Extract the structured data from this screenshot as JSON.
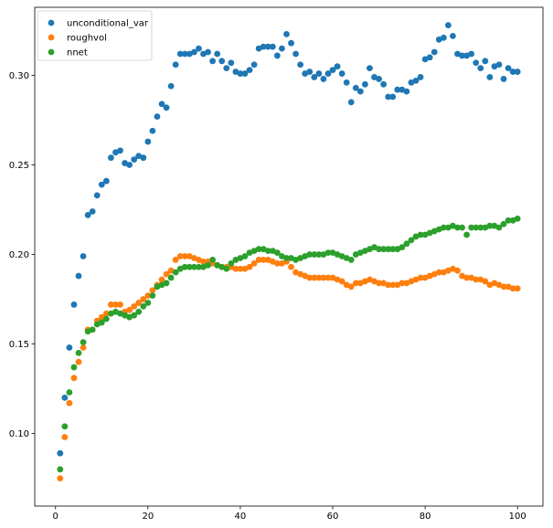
{
  "chart_data": {
    "type": "scatter",
    "title": "",
    "xlabel": "",
    "ylabel": "",
    "xlim": [
      -4.5,
      105.5
    ],
    "ylim": [
      0.0595,
      0.338
    ],
    "xticks": [
      0,
      20,
      40,
      60,
      80,
      100
    ],
    "xtick_labels": [
      "0",
      "20",
      "40",
      "60",
      "80",
      "100"
    ],
    "yticks": [
      0.1,
      0.15,
      0.2,
      0.25,
      0.3
    ],
    "ytick_labels": [
      "0.10",
      "0.15",
      "0.20",
      "0.25",
      "0.30"
    ],
    "grid": false,
    "legend": {
      "placement": "top-left"
    },
    "x": [
      1,
      2,
      3,
      4,
      5,
      6,
      7,
      8,
      9,
      10,
      11,
      12,
      13,
      14,
      15,
      16,
      17,
      18,
      19,
      20,
      21,
      22,
      23,
      24,
      25,
      26,
      27,
      28,
      29,
      30,
      31,
      32,
      33,
      34,
      35,
      36,
      37,
      38,
      39,
      40,
      41,
      42,
      43,
      44,
      45,
      46,
      47,
      48,
      49,
      50,
      51,
      52,
      53,
      54,
      55,
      56,
      57,
      58,
      59,
      60,
      61,
      62,
      63,
      64,
      65,
      66,
      67,
      68,
      69,
      70,
      71,
      72,
      73,
      74,
      75,
      76,
      77,
      78,
      79,
      80,
      81,
      82,
      83,
      84,
      85,
      86,
      87,
      88,
      89,
      90,
      91,
      92,
      93,
      94,
      95,
      96,
      97,
      98,
      99,
      100
    ],
    "series": [
      {
        "name": "unconditional_var",
        "color": "#1f77b4",
        "values": [
          0.089,
          0.12,
          0.148,
          0.172,
          0.188,
          0.199,
          0.222,
          0.224,
          0.233,
          0.239,
          0.241,
          0.254,
          0.257,
          0.258,
          0.251,
          0.25,
          0.253,
          0.255,
          0.254,
          0.263,
          0.269,
          0.277,
          0.284,
          0.282,
          0.294,
          0.306,
          0.312,
          0.312,
          0.312,
          0.313,
          0.315,
          0.312,
          0.313,
          0.308,
          0.312,
          0.308,
          0.304,
          0.307,
          0.302,
          0.301,
          0.301,
          0.303,
          0.306,
          0.315,
          0.316,
          0.316,
          0.316,
          0.311,
          0.315,
          0.323,
          0.318,
          0.312,
          0.306,
          0.301,
          0.302,
          0.299,
          0.301,
          0.298,
          0.301,
          0.303,
          0.305,
          0.301,
          0.296,
          0.285,
          0.293,
          0.291,
          0.295,
          0.304,
          0.299,
          0.298,
          0.295,
          0.288,
          0.288,
          0.292,
          0.292,
          0.291,
          0.296,
          0.297,
          0.299,
          0.309,
          0.31,
          0.313,
          0.32,
          0.321,
          0.328,
          0.322,
          0.312,
          0.311,
          0.311,
          0.312,
          0.307,
          0.304,
          0.308,
          0.299,
          0.305,
          0.306,
          0.298,
          0.304,
          0.302,
          0.302
        ]
      },
      {
        "name": "roughvol",
        "color": "#ff7f0e",
        "values": [
          0.075,
          0.098,
          0.117,
          0.131,
          0.14,
          0.148,
          0.158,
          0.158,
          0.163,
          0.165,
          0.167,
          0.172,
          0.172,
          0.172,
          0.168,
          0.169,
          0.171,
          0.173,
          0.175,
          0.177,
          0.18,
          0.183,
          0.186,
          0.189,
          0.191,
          0.197,
          0.199,
          0.199,
          0.199,
          0.198,
          0.197,
          0.196,
          0.196,
          0.195,
          0.194,
          0.193,
          0.193,
          0.193,
          0.192,
          0.192,
          0.192,
          0.193,
          0.195,
          0.197,
          0.197,
          0.197,
          0.196,
          0.195,
          0.195,
          0.196,
          0.193,
          0.19,
          0.189,
          0.188,
          0.187,
          0.187,
          0.187,
          0.187,
          0.187,
          0.187,
          0.186,
          0.185,
          0.183,
          0.182,
          0.184,
          0.184,
          0.185,
          0.186,
          0.185,
          0.184,
          0.184,
          0.183,
          0.183,
          0.183,
          0.184,
          0.184,
          0.185,
          0.186,
          0.187,
          0.187,
          0.188,
          0.189,
          0.19,
          0.19,
          0.191,
          0.192,
          0.191,
          0.188,
          0.187,
          0.187,
          0.186,
          0.186,
          0.185,
          0.183,
          0.184,
          0.183,
          0.182,
          0.182,
          0.181,
          0.181
        ]
      },
      {
        "name": "nnet",
        "color": "#2ca02c",
        "values": [
          0.08,
          0.104,
          0.123,
          0.137,
          0.145,
          0.151,
          0.157,
          0.158,
          0.161,
          0.162,
          0.164,
          0.167,
          0.168,
          0.167,
          0.166,
          0.165,
          0.166,
          0.168,
          0.171,
          0.173,
          0.177,
          0.182,
          0.183,
          0.184,
          0.187,
          0.19,
          0.192,
          0.193,
          0.193,
          0.193,
          0.193,
          0.193,
          0.194,
          0.197,
          0.194,
          0.193,
          0.192,
          0.195,
          0.197,
          0.198,
          0.199,
          0.201,
          0.202,
          0.203,
          0.203,
          0.202,
          0.202,
          0.201,
          0.199,
          0.198,
          0.198,
          0.197,
          0.198,
          0.199,
          0.2,
          0.2,
          0.2,
          0.2,
          0.201,
          0.201,
          0.2,
          0.199,
          0.198,
          0.197,
          0.2,
          0.201,
          0.202,
          0.203,
          0.204,
          0.203,
          0.203,
          0.203,
          0.203,
          0.203,
          0.204,
          0.206,
          0.208,
          0.21,
          0.211,
          0.211,
          0.212,
          0.213,
          0.214,
          0.215,
          0.215,
          0.216,
          0.215,
          0.215,
          0.211,
          0.215,
          0.215,
          0.215,
          0.215,
          0.216,
          0.216,
          0.215,
          0.217,
          0.219,
          0.219,
          0.22
        ]
      }
    ]
  },
  "colors": {
    "axes_edge": "#000000",
    "legend_edge": "#cccccc",
    "background": "#ffffff"
  }
}
